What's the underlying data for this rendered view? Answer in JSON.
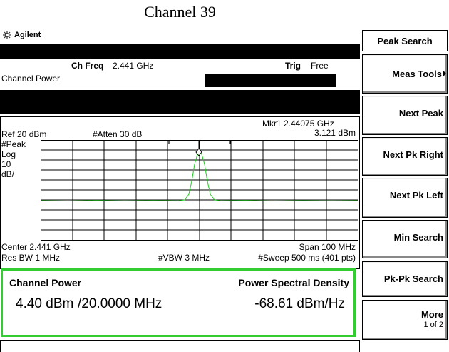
{
  "title": "Channel 39",
  "screen": {
    "logo": "Agilent",
    "ch_freq_label": "Ch Freq",
    "ch_freq_value": "2.441 GHz",
    "trig_label": "Trig",
    "trig_value": "Free",
    "measurement": "Channel Power",
    "marker": "Mkr1  2.44075 GHz",
    "marker_level": "3.121 dBm",
    "ref": "Ref 20 dBm",
    "atten": "#Atten 30 dB",
    "scale": [
      "#Peak",
      "Log",
      "10",
      "dB/"
    ],
    "center": "Center 2.441 GHz",
    "span": "Span 100 MHz",
    "res_bw": "Res BW 1 MHz",
    "vbw": "#VBW 3 MHz",
    "sweep": "#Sweep 500 ms (401 pts)"
  },
  "results": {
    "channel_power_label": "Channel Power",
    "psd_label": "Power Spectral Density",
    "channel_power_value": "4.40 dBm",
    "bandwidth": "/20.0000 MHz",
    "psd_value": "-68.61 dBm/Hz"
  },
  "softkeys": {
    "menu_title": "Peak Search",
    "keys": [
      "Meas Tools",
      "Next Peak",
      "Next Pk Right",
      "Next Pk Left",
      "Min Search",
      "Pk-Pk Search",
      "More"
    ],
    "page": "1 of 2"
  }
}
